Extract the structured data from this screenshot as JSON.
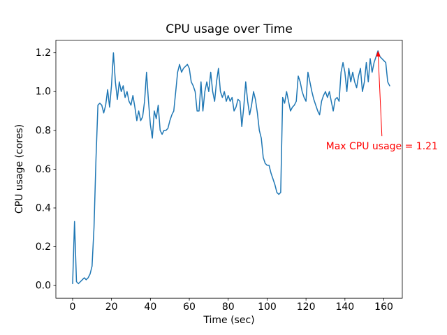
{
  "chart_data": {
    "type": "line",
    "title": "CPU usage over Time",
    "xlabel": "Time (sec)",
    "ylabel": "CPU usage (cores)",
    "xlim": [
      -8.6,
      169.5
    ],
    "ylim": [
      -0.065,
      1.265
    ],
    "x_ticks": [
      0,
      20,
      40,
      60,
      80,
      100,
      120,
      140,
      160
    ],
    "y_ticks": [
      0.0,
      0.2,
      0.4,
      0.6,
      0.8,
      1.0,
      1.2
    ],
    "grid": false,
    "legend": "none",
    "line_color": "#1f77b4",
    "line_width": 1.5,
    "annotation": {
      "text": "Max CPU usage = 1.21",
      "color": "#ff0000",
      "xy": [
        157,
        1.21
      ],
      "xytext": [
        159,
        0.72
      ]
    },
    "x": [
      0,
      1,
      2,
      3,
      4,
      5,
      6,
      7,
      8,
      9,
      10,
      11,
      12,
      13,
      14,
      15,
      16,
      17,
      18,
      19,
      20,
      21,
      22,
      23,
      24,
      25,
      26,
      27,
      28,
      29,
      30,
      31,
      32,
      33,
      34,
      35,
      36,
      37,
      38,
      39,
      40,
      41,
      42,
      43,
      44,
      45,
      46,
      47,
      48,
      49,
      50,
      51,
      52,
      53,
      54,
      55,
      56,
      57,
      58,
      59,
      60,
      61,
      62,
      63,
      64,
      65,
      66,
      67,
      68,
      69,
      70,
      71,
      72,
      73,
      74,
      75,
      76,
      77,
      78,
      79,
      80,
      81,
      82,
      83,
      84,
      85,
      86,
      87,
      88,
      89,
      90,
      91,
      92,
      93,
      94,
      95,
      96,
      97,
      98,
      99,
      100,
      101,
      102,
      103,
      104,
      105,
      106,
      107,
      108,
      109,
      110,
      111,
      112,
      113,
      114,
      115,
      116,
      117,
      118,
      119,
      120,
      121,
      122,
      123,
      124,
      125,
      126,
      127,
      128,
      129,
      130,
      131,
      132,
      133,
      134,
      135,
      136,
      137,
      138,
      139,
      140,
      141,
      142,
      143,
      144,
      145,
      146,
      147,
      148,
      149,
      150,
      151,
      152,
      153,
      154,
      155,
      156,
      157,
      158,
      159,
      160,
      161,
      162,
      163
    ],
    "y": [
      0.01,
      0.33,
      0.02,
      0.01,
      0.02,
      0.03,
      0.04,
      0.03,
      0.04,
      0.06,
      0.1,
      0.3,
      0.65,
      0.93,
      0.94,
      0.93,
      0.89,
      0.93,
      1.01,
      0.92,
      1.03,
      1.2,
      1.05,
      0.96,
      1.05,
      1.0,
      1.03,
      0.97,
      1.0,
      0.95,
      0.93,
      0.98,
      0.92,
      0.85,
      0.9,
      0.85,
      0.87,
      0.95,
      1.1,
      0.95,
      0.83,
      0.76,
      0.9,
      0.86,
      0.93,
      0.8,
      0.78,
      0.8,
      0.8,
      0.81,
      0.85,
      0.88,
      0.9,
      1.0,
      1.1,
      1.14,
      1.1,
      1.12,
      1.13,
      1.14,
      1.12,
      1.05,
      1.03,
      1.0,
      0.9,
      0.9,
      1.05,
      0.9,
      1.0,
      1.05,
      1.0,
      1.1,
      1.0,
      0.95,
      1.05,
      1.12,
      1.0,
      0.97,
      1.0,
      0.95,
      0.98,
      0.95,
      0.97,
      0.9,
      0.92,
      0.96,
      0.95,
      0.82,
      0.92,
      1.05,
      0.95,
      0.88,
      0.93,
      1.0,
      0.96,
      0.89,
      0.8,
      0.76,
      0.66,
      0.63,
      0.62,
      0.62,
      0.58,
      0.55,
      0.52,
      0.48,
      0.47,
      0.48,
      0.97,
      0.94,
      1.0,
      0.95,
      0.9,
      0.92,
      0.93,
      0.95,
      1.08,
      1.05,
      1.0,
      0.97,
      0.95,
      1.1,
      1.05,
      1.0,
      0.96,
      0.93,
      0.9,
      0.88,
      0.95,
      0.98,
      1.0,
      0.97,
      1.0,
      0.95,
      0.9,
      0.96,
      0.97,
      0.95,
      1.1,
      1.15,
      1.1,
      1.0,
      1.12,
      1.05,
      1.1,
      1.05,
      1.02,
      1.08,
      1.12,
      1.0,
      1.05,
      1.15,
      1.05,
      1.17,
      1.1,
      1.15,
      1.18,
      1.21,
      1.18,
      1.17,
      1.16,
      1.15,
      1.05,
      1.03
    ]
  }
}
